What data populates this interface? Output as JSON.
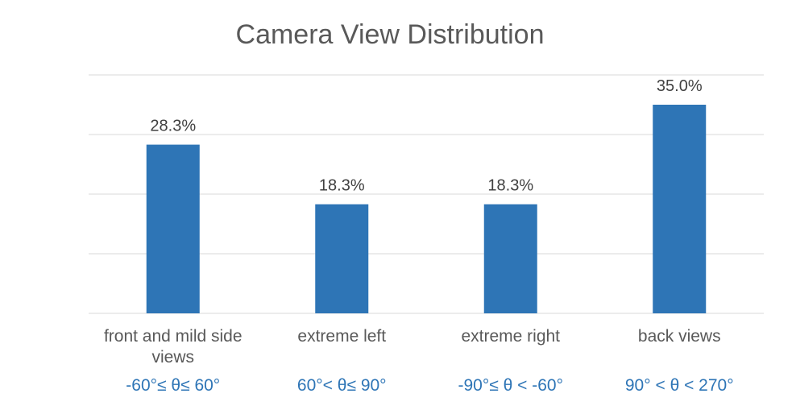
{
  "chart_data": {
    "type": "bar",
    "title": "Camera View Distribution",
    "xlabel": "",
    "ylabel": "",
    "ylim": [
      0,
      40
    ],
    "grid": true,
    "categories": [
      [
        "front and mild side",
        "views"
      ],
      [
        "extreme left"
      ],
      [
        "extreme right"
      ],
      [
        "back views"
      ]
    ],
    "ranges": [
      "-60°≤ θ≤ 60°",
      "60°< θ≤ 90°",
      "-90°≤ θ < -60°",
      "90° < θ < 270°"
    ],
    "values": [
      28.3,
      18.3,
      18.3,
      35.0
    ],
    "data_labels": [
      "28.3%",
      "18.3%",
      "18.3%",
      "35.0%"
    ],
    "colors": {
      "bar": "#2e75b6",
      "grid": "#d9d9d9",
      "range_text": "#2e75b6"
    }
  }
}
